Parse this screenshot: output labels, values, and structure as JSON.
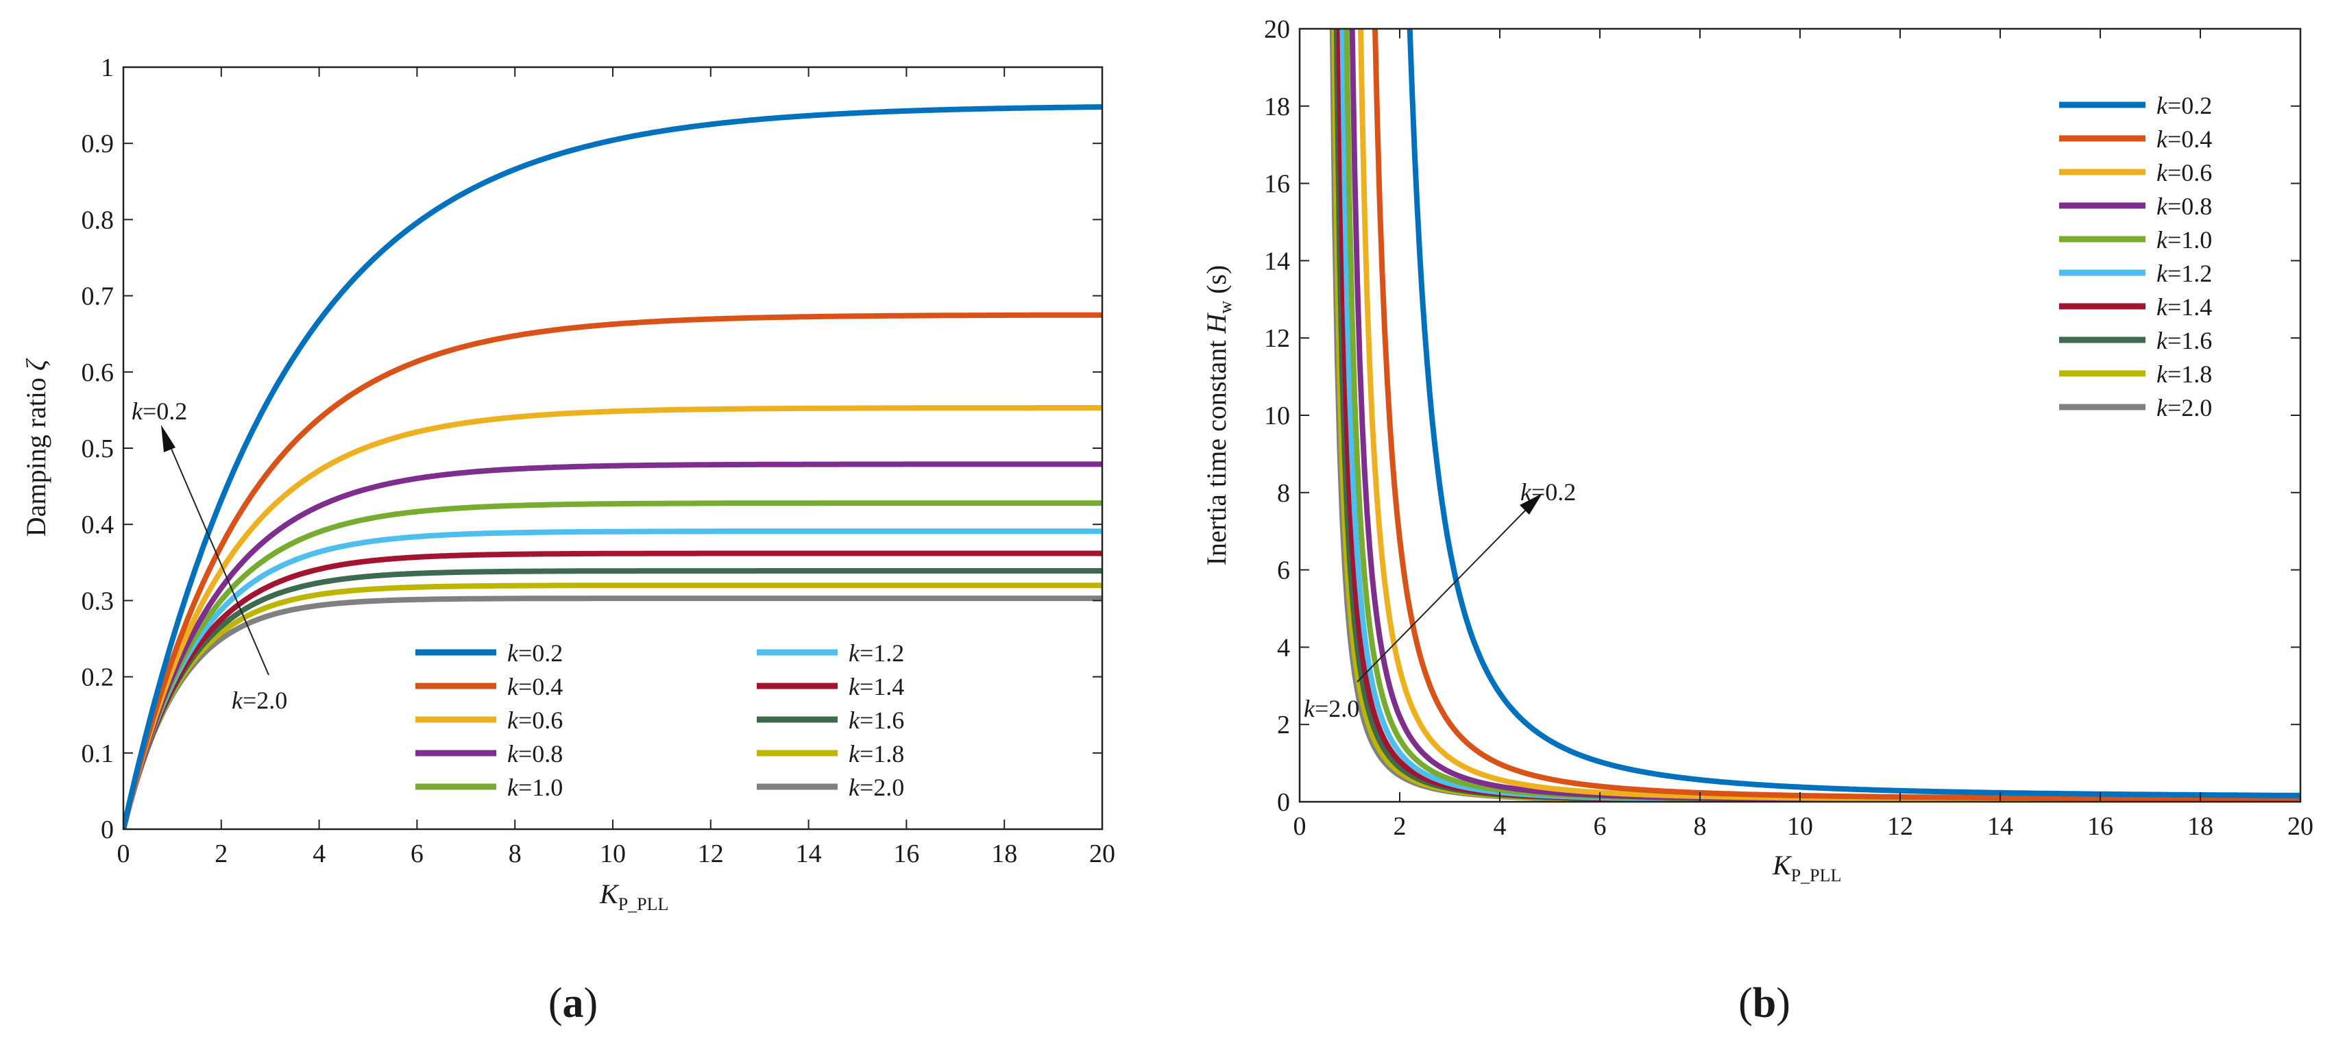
{
  "chart_data": [
    {
      "type": "line",
      "panel_label": "a",
      "xlabel_main": "K",
      "xlabel_sub": "P_PLL",
      "ylabel_text": "Damping ratio ",
      "ylabel_symbol": "ζ",
      "xlim": [
        0,
        20
      ],
      "ylim": [
        0,
        1
      ],
      "x_ticks": [
        "0",
        "2",
        "4",
        "6",
        "8",
        "10",
        "12",
        "14",
        "16",
        "18",
        "20"
      ],
      "y_ticks": [
        "0",
        "0.1",
        "0.2",
        "0.3",
        "0.4",
        "0.5",
        "0.6",
        "0.7",
        "0.8",
        "0.9",
        "1"
      ],
      "legend_position": "lower-right, two columns",
      "annotation_top": {
        "var": "k",
        "text": "=0.2"
      },
      "annotation_bottom": {
        "var": "k",
        "text": "=2.0"
      },
      "curve_model": "zeta(x) = asymptote * (1 - exp(-x / tau))",
      "series": [
        {
          "name": "k=0.2",
          "var": "k",
          "value": "=0.2",
          "color": "#0072BD",
          "asymptote": 0.95,
          "tau": 3.3
        },
        {
          "name": "k=0.4",
          "var": "k",
          "value": "=0.4",
          "color": "#D95319",
          "asymptote": 0.675,
          "tau": 2.5
        },
        {
          "name": "k=0.6",
          "var": "k",
          "value": "=0.6",
          "color": "#EDB120",
          "asymptote": 0.553,
          "tau": 2.1
        },
        {
          "name": "k=0.8",
          "var": "k",
          "value": "=0.8",
          "color": "#7E2F8E",
          "asymptote": 0.479,
          "tau": 1.85
        },
        {
          "name": "k=1.0",
          "var": "k",
          "value": "=1.0",
          "color": "#77AC30",
          "asymptote": 0.428,
          "tau": 1.65
        },
        {
          "name": "k=1.2",
          "var": "k",
          "value": "=1.2",
          "color": "#4DBEEE",
          "asymptote": 0.391,
          "tau": 1.5
        },
        {
          "name": "k=1.4",
          "var": "k",
          "value": "=1.4",
          "color": "#A2142F",
          "asymptote": 0.362,
          "tau": 1.4
        },
        {
          "name": "k=1.6",
          "var": "k",
          "value": "=1.6",
          "color": "#3E6B4F",
          "asymptote": 0.339,
          "tau": 1.3
        },
        {
          "name": "k=1.8",
          "var": "k",
          "value": "=1.8",
          "color": "#BDB600",
          "asymptote": 0.32,
          "tau": 1.22
        },
        {
          "name": "k=2.0",
          "var": "k",
          "value": "=2.0",
          "color": "#808080",
          "asymptote": 0.303,
          "tau": 1.15
        }
      ]
    },
    {
      "type": "line",
      "panel_label": "b",
      "xlabel_main": "K",
      "xlabel_sub": "P_PLL",
      "ylabel_text": "Inertia time constant ",
      "ylabel_symbol": "H",
      "ylabel_sub": "w",
      "ylabel_unit": " (s)",
      "xlim": [
        0,
        20
      ],
      "ylim": [
        0,
        20
      ],
      "x_ticks": [
        "0",
        "2",
        "4",
        "6",
        "8",
        "10",
        "12",
        "14",
        "16",
        "18",
        "20"
      ],
      "y_ticks": [
        "0",
        "2",
        "4",
        "6",
        "8",
        "10",
        "12",
        "14",
        "16",
        "18",
        "20"
      ],
      "legend_position": "top-right",
      "annotation_top": {
        "var": "k",
        "text": "=0.2"
      },
      "annotation_bottom": {
        "var": "k",
        "text": "=2.0"
      },
      "curve_model": "H(x) = A / (x - x0)^2 + c",
      "series": [
        {
          "name": "k=0.2",
          "var": "k",
          "value": "=0.2",
          "color": "#0072BD",
          "A": 22.0,
          "x0": 1.15,
          "c": 0.1
        },
        {
          "name": "k=0.4",
          "var": "k",
          "value": "=0.4",
          "color": "#D95319",
          "A": 9.4,
          "x0": 0.82,
          "c": 0.05
        },
        {
          "name": "k=0.6",
          "var": "k",
          "value": "=0.6",
          "color": "#EDB120",
          "A": 6.0,
          "x0": 0.67,
          "c": 0.03
        },
        {
          "name": "k=0.8",
          "var": "k",
          "value": "=0.8",
          "color": "#7E2F8E",
          "A": 4.4,
          "x0": 0.58,
          "c": 0.02
        },
        {
          "name": "k=1.0",
          "var": "k",
          "value": "=1.0",
          "color": "#77AC30",
          "A": 3.5,
          "x0": 0.52,
          "c": 0.02
        },
        {
          "name": "k=1.2",
          "var": "k",
          "value": "=1.2",
          "color": "#4DBEEE",
          "A": 2.95,
          "x0": 0.47,
          "c": 0.01
        },
        {
          "name": "k=1.4",
          "var": "k",
          "value": "=1.4",
          "color": "#A2142F",
          "A": 2.55,
          "x0": 0.43,
          "c": 0.01
        },
        {
          "name": "k=1.6",
          "var": "k",
          "value": "=1.6",
          "color": "#3E6B4F",
          "A": 2.25,
          "x0": 0.4,
          "c": 0.01
        },
        {
          "name": "k=1.8",
          "var": "k",
          "value": "=1.8",
          "color": "#BDB600",
          "A": 2.02,
          "x0": 0.37,
          "c": 0.0
        },
        {
          "name": "k=2.0",
          "var": "k",
          "value": "=2.0",
          "color": "#808080",
          "A": 1.85,
          "x0": 0.35,
          "c": 0.0
        }
      ]
    }
  ]
}
